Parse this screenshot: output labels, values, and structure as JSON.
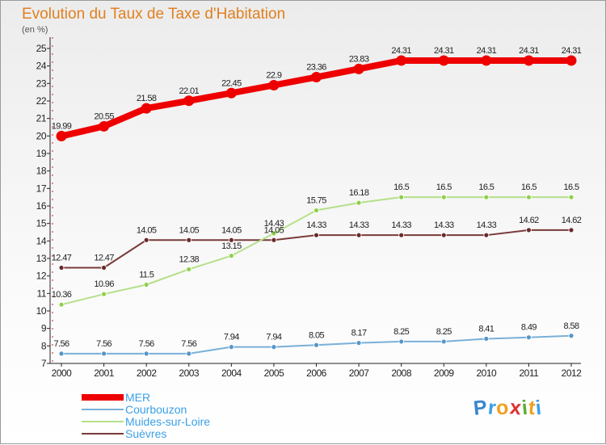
{
  "title": "Evolution du Taux de Taxe d'Habitation",
  "unit_label": "(en %)",
  "brand": {
    "letters": [
      "P",
      "r",
      "o",
      "x",
      "i",
      "t",
      "i"
    ],
    "colors": [
      "#3a86d0",
      "#3aa0e8",
      "#f0a020",
      "#e03030",
      "#58b030",
      "#f0a020",
      "#3aa0e8"
    ]
  },
  "chart_data": {
    "type": "line",
    "title": "Evolution du Taux de Taxe d'Habitation",
    "ylabel": "(en %)",
    "xlabel": "",
    "x": [
      "2000",
      "2001",
      "2002",
      "2003",
      "2004",
      "2005",
      "2006",
      "2007",
      "2008",
      "2009",
      "2010",
      "2011",
      "2012"
    ],
    "ylim": [
      7,
      25
    ],
    "yticks": [
      7,
      8,
      9,
      10,
      11,
      12,
      13,
      14,
      15,
      16,
      17,
      18,
      19,
      20,
      21,
      22,
      23,
      24,
      25
    ],
    "grid": false,
    "legend_position": "bottom-left",
    "series": [
      {
        "name": "MER",
        "color": "#ee0000",
        "values": [
          19.99,
          20.55,
          21.58,
          22.01,
          22.45,
          22.9,
          23.36,
          23.83,
          24.31,
          24.31,
          24.31,
          24.31,
          24.31
        ],
        "labels": [
          "19.99",
          "20.55",
          "21.58",
          "22.01",
          "22.45",
          "22.9",
          "23.36",
          "23.83",
          "24.31",
          "24.31",
          "24.31",
          "24.31",
          "24.31"
        ]
      },
      {
        "name": "Courbouzon",
        "color": "#7ab0d8",
        "marker": "#5596c8",
        "values": [
          7.56,
          7.56,
          7.56,
          7.56,
          7.94,
          7.94,
          8.05,
          8.17,
          8.25,
          8.25,
          8.41,
          8.49,
          8.58
        ],
        "labels": [
          "7.56",
          "7.56",
          "7.56",
          "7.56",
          "7.94",
          "7.94",
          "8.05",
          "8.17",
          "8.25",
          "8.25",
          "8.41",
          "8.49",
          "8.58"
        ]
      },
      {
        "name": "Muides-sur-Loire",
        "color": "#b5e08a",
        "marker": "#8ed04a",
        "values": [
          10.36,
          10.96,
          11.5,
          12.38,
          13.15,
          14.43,
          15.75,
          16.18,
          16.5,
          16.5,
          16.5,
          16.5,
          16.5
        ],
        "labels": [
          "10.36",
          "10.96",
          "11.5",
          "12.38",
          "13.15",
          "14.43",
          "15.75",
          "16.18",
          "16.5",
          "16.5",
          "16.5",
          "16.5",
          "16.5"
        ]
      },
      {
        "name": "Suèvres",
        "color": "#7a3a3a",
        "marker": "#6a2a2a",
        "values": [
          12.47,
          12.47,
          14.05,
          14.05,
          14.05,
          14.05,
          14.33,
          14.33,
          14.33,
          14.33,
          14.33,
          14.62,
          14.62
        ],
        "labels": [
          "12.47",
          "12.47",
          "14.05",
          "14.05",
          "14.05",
          "14.05",
          "14.33",
          "14.33",
          "14.33",
          "14.33",
          "14.33",
          "14.62",
          "14.62"
        ]
      }
    ]
  }
}
